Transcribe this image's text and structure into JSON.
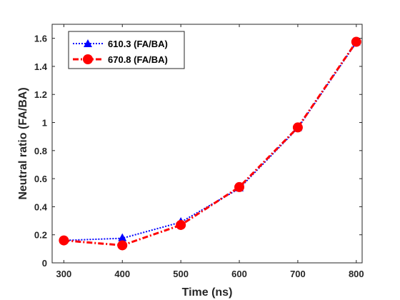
{
  "chart_data": {
    "type": "line",
    "title": "",
    "xlabel": "Time (ns)",
    "ylabel": "Neutral ratio (FA/BA)",
    "x": [
      300,
      400,
      500,
      600,
      700,
      800
    ],
    "xlim": [
      280,
      810
    ],
    "ylim": [
      0,
      1.7
    ],
    "xticks": [
      "300",
      "400",
      "500",
      "600",
      "700",
      "800"
    ],
    "yticks": [
      "0",
      "0.2",
      "0.4",
      "0.6",
      "0.8",
      "1",
      "1.2",
      "1.4",
      "1.6"
    ],
    "grid": false,
    "legend_position": "top-left",
    "series": [
      {
        "name": "610.3 (FA/BA)",
        "values": [
          0.16,
          0.175,
          0.29,
          0.53,
          0.96,
          1.57
        ],
        "color": "#0000ff",
        "line_style": "dotted",
        "marker": "triangle"
      },
      {
        "name": "670.8 (FA/BA)",
        "values": [
          0.16,
          0.125,
          0.27,
          0.54,
          0.965,
          1.575
        ],
        "color": "#ff0000",
        "line_style": "dash-dot",
        "marker": "circle"
      }
    ]
  }
}
